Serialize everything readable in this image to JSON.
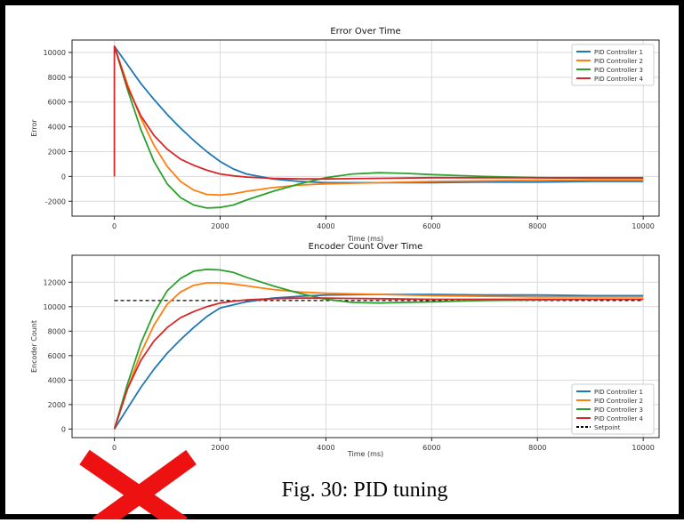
{
  "caption": "Fig. 30: PID tuning",
  "overlay_mark": "red-x-mark",
  "colors": {
    "frame": "#000000",
    "axes": "#222222",
    "grid": "#d9d9d9",
    "pid1": "#1f77b4",
    "pid2": "#ff7f0e",
    "pid3": "#2ca02c",
    "pid4": "#d62728",
    "setpoint": "#000000",
    "cross": "#ee1111"
  },
  "chart_data": [
    {
      "type": "line",
      "title": "Error Over Time",
      "xlabel": "Time (ms)",
      "ylabel": "Error",
      "xlim": [
        -800,
        10300
      ],
      "ylim": [
        -3200,
        11000
      ],
      "xticks": [
        0,
        2000,
        4000,
        6000,
        8000,
        10000
      ],
      "yticks": [
        -2000,
        0,
        2000,
        4000,
        6000,
        8000,
        10000
      ],
      "grid": true,
      "legend_position": "top-right",
      "series": [
        {
          "name": "PID Controller 1",
          "color_key": "pid1",
          "x": [
            0,
            250,
            500,
            750,
            1000,
            1250,
            1500,
            1750,
            2000,
            2250,
            2500,
            3000,
            3500,
            4000,
            5000,
            6000,
            7000,
            8000,
            9000,
            10000
          ],
          "y": [
            10500,
            9000,
            7500,
            6200,
            5000,
            3900,
            2900,
            2000,
            1200,
            600,
            200,
            -200,
            -400,
            -500,
            -500,
            -500,
            -450,
            -450,
            -400,
            -400
          ]
        },
        {
          "name": "PID Controller 2",
          "color_key": "pid2",
          "x": [
            0,
            250,
            500,
            750,
            1000,
            1250,
            1500,
            1750,
            2000,
            2250,
            2500,
            3000,
            3500,
            4000,
            5000,
            6000,
            7000,
            8000,
            9000,
            10000
          ],
          "y": [
            10500,
            7400,
            4700,
            2500,
            800,
            -400,
            -1100,
            -1450,
            -1500,
            -1400,
            -1200,
            -900,
            -700,
            -600,
            -500,
            -400,
            -350,
            -300,
            -300,
            -300
          ]
        },
        {
          "name": "PID Controller 3",
          "color_key": "pid3",
          "x": [
            0,
            250,
            500,
            750,
            1000,
            1250,
            1500,
            1750,
            2000,
            2250,
            2500,
            3000,
            3500,
            4000,
            4500,
            5000,
            5500,
            6000,
            7000,
            8000,
            9000,
            10000
          ],
          "y": [
            10500,
            7000,
            3800,
            1200,
            -600,
            -1700,
            -2300,
            -2550,
            -2500,
            -2300,
            -1900,
            -1200,
            -600,
            -100,
            200,
            300,
            250,
            150,
            0,
            -100,
            -150,
            -150
          ]
        },
        {
          "name": "PID Controller 4",
          "color_key": "pid4",
          "x": [
            0,
            250,
            500,
            750,
            1000,
            1250,
            1500,
            1750,
            2000,
            2250,
            2500,
            3000,
            3500,
            4000,
            5000,
            6000,
            7000,
            8000,
            9000,
            10000
          ],
          "y": [
            10500,
            7200,
            4900,
            3300,
            2200,
            1400,
            900,
            500,
            200,
            50,
            -50,
            -150,
            -200,
            -200,
            -150,
            -100,
            -100,
            -100,
            -100,
            -100
          ]
        }
      ]
    },
    {
      "type": "line",
      "title": "Encoder Count Over Time",
      "xlabel": "Time (ms)",
      "ylabel": "Encoder Count",
      "xlim": [
        -800,
        10300
      ],
      "ylim": [
        -700,
        14200
      ],
      "xticks": [
        0,
        2000,
        4000,
        6000,
        8000,
        10000
      ],
      "yticks": [
        0,
        2000,
        4000,
        6000,
        8000,
        10000,
        12000
      ],
      "grid": true,
      "legend_position": "bottom-right",
      "setpoint_value": 10500,
      "setpoint_label": "Setpoint",
      "series": [
        {
          "name": "PID Controller 1",
          "color_key": "pid1",
          "x": [
            0,
            250,
            500,
            750,
            1000,
            1250,
            1500,
            1750,
            2000,
            2500,
            3000,
            3500,
            4000,
            5000,
            6000,
            7000,
            8000,
            9000,
            10000
          ],
          "y": [
            0,
            1700,
            3400,
            4900,
            6200,
            7300,
            8300,
            9200,
            9900,
            10400,
            10700,
            10850,
            10950,
            11000,
            11000,
            10950,
            10950,
            10900,
            10900
          ]
        },
        {
          "name": "PID Controller 2",
          "color_key": "pid2",
          "x": [
            0,
            250,
            500,
            750,
            1000,
            1250,
            1500,
            1750,
            2000,
            2250,
            2500,
            3000,
            3500,
            4000,
            5000,
            6000,
            7000,
            8000,
            9000,
            10000
          ],
          "y": [
            0,
            3300,
            6200,
            8500,
            10200,
            11200,
            11750,
            11950,
            11950,
            11850,
            11700,
            11400,
            11200,
            11100,
            11000,
            10900,
            10850,
            10800,
            10800,
            10800
          ]
        },
        {
          "name": "PID Controller 3",
          "color_key": "pid3",
          "x": [
            0,
            250,
            500,
            750,
            1000,
            1250,
            1500,
            1750,
            2000,
            2250,
            2500,
            3000,
            3500,
            4000,
            4500,
            5000,
            5500,
            6000,
            7000,
            8000,
            9000,
            10000
          ],
          "y": [
            0,
            3700,
            7000,
            9500,
            11300,
            12300,
            12900,
            13050,
            13000,
            12800,
            12400,
            11700,
            11100,
            10600,
            10350,
            10300,
            10350,
            10400,
            10500,
            10550,
            10600,
            10600
          ]
        },
        {
          "name": "PID Controller 4",
          "color_key": "pid4",
          "x": [
            0,
            250,
            500,
            750,
            1000,
            1250,
            1500,
            1750,
            2000,
            2250,
            2500,
            3000,
            3500,
            4000,
            5000,
            6000,
            7000,
            8000,
            9000,
            10000
          ],
          "y": [
            0,
            3300,
            5600,
            7200,
            8300,
            9100,
            9600,
            10000,
            10300,
            10450,
            10550,
            10650,
            10700,
            10700,
            10650,
            10600,
            10600,
            10600,
            10600,
            10600
          ]
        }
      ]
    }
  ]
}
